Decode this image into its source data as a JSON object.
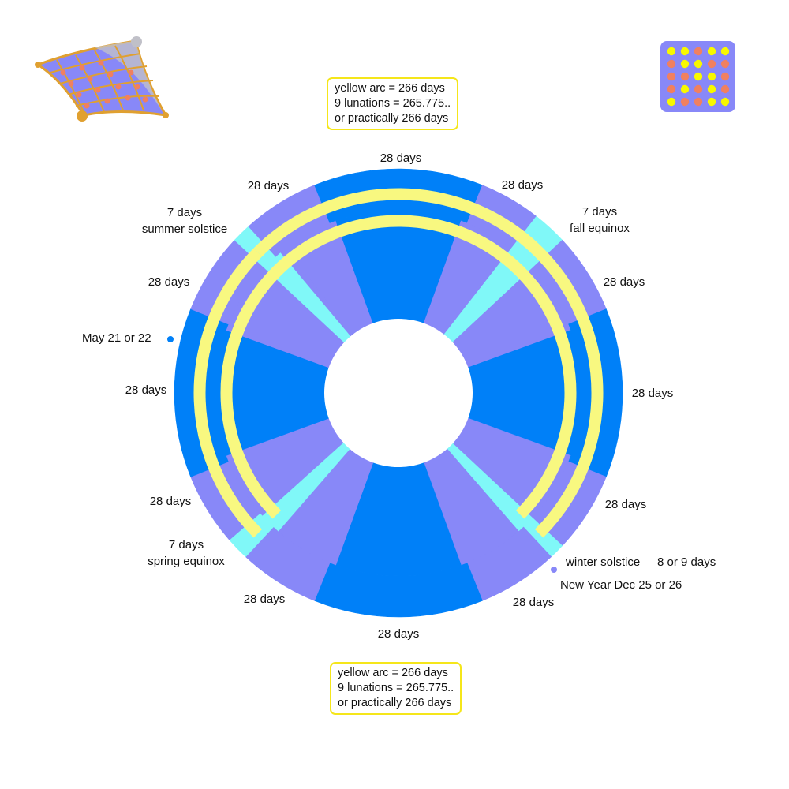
{
  "colors": {
    "light_segment": "#8888f8",
    "dark_segment": "#0080f8",
    "week_segment": "#80f8f8",
    "yellow_arc": "#f8f880",
    "callout_border": "#f5e61a",
    "may_dot": "#0080f8",
    "winter_dot": "#8888f8"
  },
  "callouts": {
    "top": {
      "line1": "yellow arc = 266 days",
      "line2": "9 lunations = 265.775..",
      "line3": "or practically 266 days"
    },
    "bottom": {
      "line1": "yellow arc = 266 days",
      "line2": "9 lunations = 265.775..",
      "line3": "or practically 266 days"
    }
  },
  "labels": {
    "top": "28 days",
    "upper_left": "28 days",
    "upper_right": "28 days",
    "summer_days": "7 days",
    "summer_name": "summer solstice",
    "fall_days": "7 days",
    "fall_name": "fall equinox",
    "left_upper": "28 days",
    "right_upper": "28 days",
    "may": "May 21 or 22",
    "left": "28 days",
    "right": "28 days",
    "left_lower": "28 days",
    "right_lower": "28 days",
    "spring_days": "7 days",
    "spring_name": "spring equinox",
    "winter_name": "winter solstice",
    "winter_days": "8 or 9 days",
    "new_year": "New Year  Dec 25 or 26",
    "lower_left": "28 days",
    "lower_right": "28 days",
    "bottom": "28 days"
  },
  "icons": [
    "magic-carpet-icon",
    "dot-grid-icon"
  ]
}
